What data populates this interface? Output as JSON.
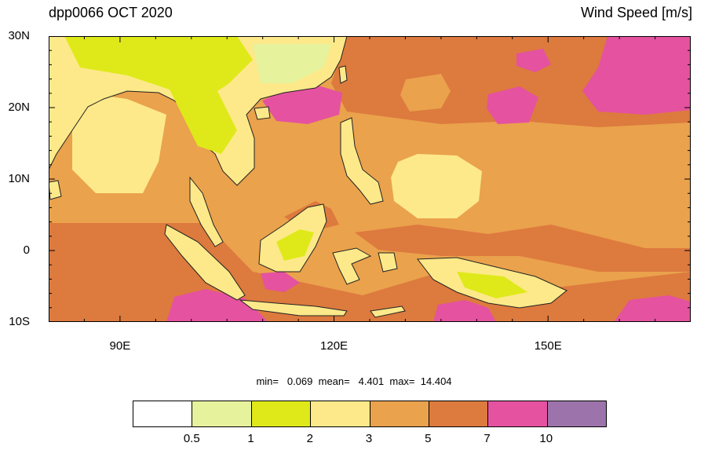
{
  "title_left": "dpp0066 OCT 2020",
  "title_right": "Wind Speed [m/s]",
  "map": {
    "lat_range": [
      -10,
      30
    ],
    "lon_range": [
      80,
      170
    ],
    "y_labels": [
      {
        "text": "30N",
        "lat": 30
      },
      {
        "text": "20N",
        "lat": 20
      },
      {
        "text": "10N",
        "lat": 10
      },
      {
        "text": "0",
        "lat": 0
      },
      {
        "text": "10S",
        "lat": -10
      }
    ],
    "x_labels": [
      {
        "text": "90E",
        "lon": 90
      },
      {
        "text": "120E",
        "lon": 120
      },
      {
        "text": "150E",
        "lon": 150
      }
    ]
  },
  "stats": {
    "min_label": "min=",
    "min_value": "0.069",
    "mean_label": "mean=",
    "mean_value": "4.401",
    "max_label": "max=",
    "max_value": "14.404"
  },
  "colorbar": {
    "colors": [
      "#ffffff",
      "#e6f29c",
      "#dfe91a",
      "#fde98a",
      "#eaa24c",
      "#dd7a3e",
      "#e552a0",
      "#9c73aa"
    ],
    "labels": [
      "0.5",
      "1",
      "2",
      "3",
      "5",
      "7",
      "10"
    ]
  }
}
